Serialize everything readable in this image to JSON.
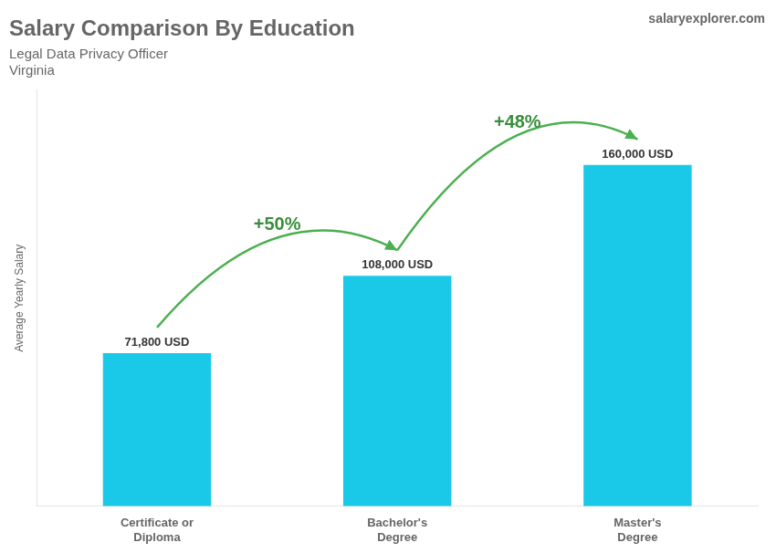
{
  "chart_data": {
    "type": "bar",
    "title": "Salary Comparison By Education",
    "subtitle": [
      "Legal Data Privacy Officer",
      "Virginia"
    ],
    "categories": [
      "Certificate or\nDiploma",
      "Bachelor's\nDegree",
      "Master's\nDegree"
    ],
    "values": [
      71800,
      108000,
      160000
    ],
    "value_labels": [
      "71,800 USD",
      "108,000 USD",
      "160,000 USD"
    ],
    "data_labels": true,
    "color": "#1ac8e8",
    "ylabel": "Average Yearly Salary",
    "ylim": [
      0,
      195000
    ],
    "tick_labels": "x",
    "grid": false,
    "annotations": [
      {
        "text": "+50%",
        "from": "Certificate or\nDiploma",
        "to": "Bachelor's\nDegree"
      },
      {
        "text": "+48%",
        "from": "Bachelor's\nDegree",
        "to": "Master's\nDegree"
      },
      {
        "text": "salaryexplorer.com"
      }
    ]
  }
}
